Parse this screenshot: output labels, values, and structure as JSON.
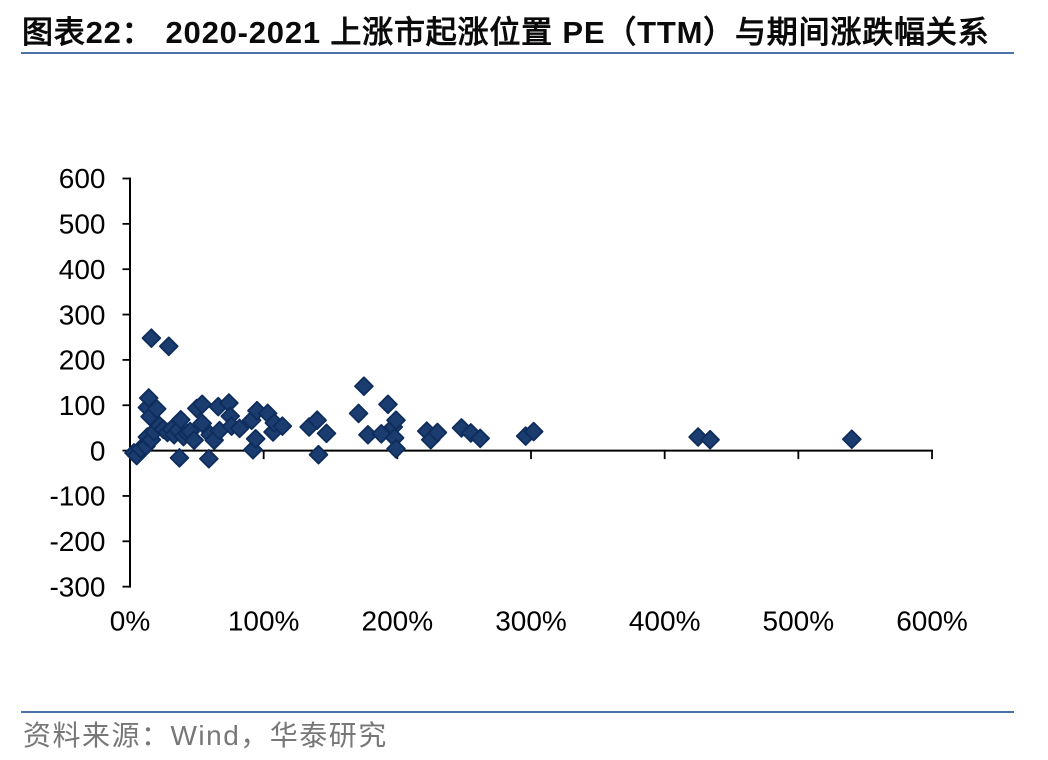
{
  "header": {
    "figure_label": "图表22：",
    "title": "2020-2021 上涨市起涨位置 PE（TTM）与期间涨跌幅关系"
  },
  "footer": {
    "source_label": "资料来源：Wind，华泰研究"
  },
  "colors": {
    "accent_rule": "#4a72a8",
    "marker_fill": "#1b3c6e",
    "marker_stroke": "#0e2c5c",
    "axis": "#000000",
    "title_text": "#0a0a0a",
    "footer_text": "#808080"
  },
  "chart_data": {
    "type": "scatter",
    "title": "",
    "xlabel": "",
    "ylabel": "",
    "xlim": [
      0,
      600
    ],
    "ylim": [
      -300,
      600
    ],
    "grid": false,
    "legend": false,
    "x_tick_labels": [
      "0%",
      "100%",
      "200%",
      "300%",
      "400%",
      "500%",
      "600%"
    ],
    "x_tick_values": [
      0,
      100,
      200,
      300,
      400,
      500,
      600
    ],
    "y_tick_labels": [
      "600",
      "500",
      "400",
      "300",
      "200",
      "100",
      "0",
      "-100",
      "-200",
      "-300"
    ],
    "y_tick_values": [
      600,
      500,
      400,
      300,
      200,
      100,
      0,
      -100,
      -200,
      -300
    ],
    "points": [
      [
        3,
        -5
      ],
      [
        5,
        -11
      ],
      [
        8,
        4
      ],
      [
        12,
        10
      ],
      [
        13,
        30
      ],
      [
        16,
        24
      ],
      [
        18,
        42
      ],
      [
        13,
        95
      ],
      [
        14,
        116
      ],
      [
        15,
        75
      ],
      [
        20,
        92
      ],
      [
        16,
        248
      ],
      [
        29,
        230
      ],
      [
        22,
        55
      ],
      [
        25,
        47
      ],
      [
        28,
        40
      ],
      [
        31,
        47
      ],
      [
        33,
        35
      ],
      [
        36,
        45
      ],
      [
        38,
        68
      ],
      [
        37,
        -16
      ],
      [
        40,
        31
      ],
      [
        43,
        38
      ],
      [
        45,
        42
      ],
      [
        48,
        23
      ],
      [
        50,
        93
      ],
      [
        54,
        102
      ],
      [
        54,
        60
      ],
      [
        59,
        -18
      ],
      [
        60,
        35
      ],
      [
        63,
        23
      ],
      [
        66,
        97
      ],
      [
        67,
        44
      ],
      [
        74,
        105
      ],
      [
        75,
        76
      ],
      [
        76,
        54
      ],
      [
        82,
        49
      ],
      [
        91,
        67
      ],
      [
        92,
        2
      ],
      [
        94,
        26
      ],
      [
        95,
        88
      ],
      [
        103,
        82
      ],
      [
        107,
        41
      ],
      [
        108,
        61
      ],
      [
        114,
        54
      ],
      [
        134,
        52
      ],
      [
        140,
        67
      ],
      [
        141,
        -9
      ],
      [
        147,
        38
      ],
      [
        171,
        82
      ],
      [
        175,
        142
      ],
      [
        178,
        35
      ],
      [
        188,
        37
      ],
      [
        193,
        102
      ],
      [
        197,
        52
      ],
      [
        198,
        28
      ],
      [
        199,
        67
      ],
      [
        199,
        4
      ],
      [
        222,
        43
      ],
      [
        225,
        24
      ],
      [
        230,
        40
      ],
      [
        248,
        50
      ],
      [
        255,
        39
      ],
      [
        262,
        27
      ],
      [
        296,
        32
      ],
      [
        302,
        42
      ],
      [
        425,
        30
      ],
      [
        434,
        24
      ],
      [
        540,
        25
      ]
    ]
  }
}
